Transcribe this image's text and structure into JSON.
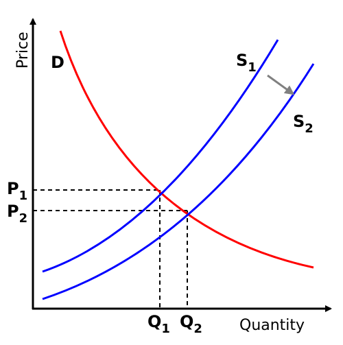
{
  "axes": {
    "y_title": "Price",
    "x_title": "Quantity"
  },
  "curves": {
    "demand": "D",
    "supply_1": {
      "main": "S",
      "sub": "1"
    },
    "supply_2": {
      "main": "S",
      "sub": "2"
    }
  },
  "prices": [
    {
      "main": "P",
      "sub": "1"
    },
    {
      "main": "P",
      "sub": "2"
    }
  ],
  "quantities": [
    {
      "main": "Q",
      "sub": "1"
    },
    {
      "main": "Q",
      "sub": "2"
    }
  ]
}
